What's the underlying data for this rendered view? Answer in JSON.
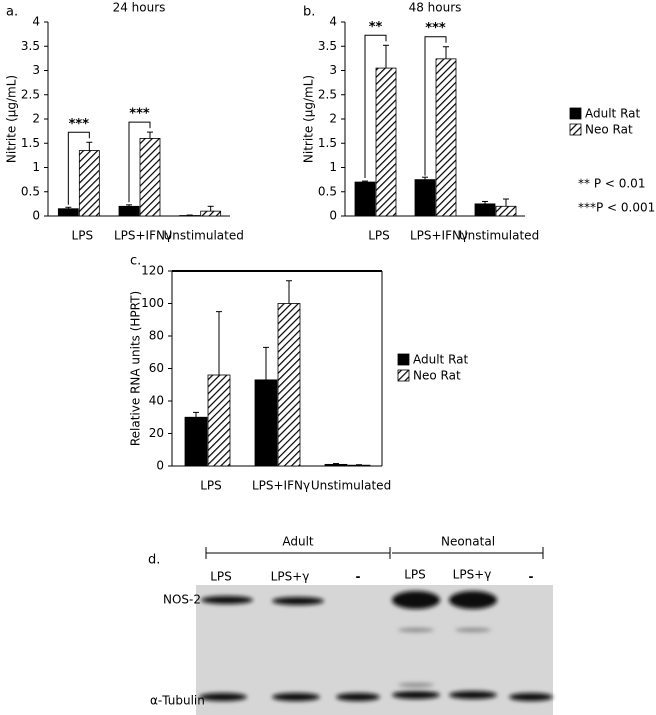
{
  "chart_data": [
    {
      "type": "bar",
      "panel_label": "a.",
      "title": "24 hours",
      "y_label": "Nitrite (µg/mL)",
      "categories": [
        "LPS",
        "LPS+IFNγ",
        "Unstimulated"
      ],
      "series": [
        {
          "color": "#000000",
          "fill": "solid",
          "values": [
            0.15,
            0.2,
            0.01
          ],
          "errors": [
            0.03,
            0.03,
            0.01
          ]
        },
        {
          "color": "#000000",
          "fill": "hatch",
          "values": [
            1.35,
            1.6,
            0.1
          ],
          "errors": [
            0.17,
            0.13,
            0.1
          ]
        }
      ],
      "significance": [
        "***",
        "***",
        null
      ],
      "ylim": [
        0,
        4
      ],
      "yticks": [
        0,
        0.5,
        1,
        1.5,
        2,
        2.5,
        3,
        3.5,
        4
      ]
    },
    {
      "type": "bar",
      "panel_label": "b.",
      "title": "48 hours",
      "y_label": "Nitrite (µg/mL)",
      "categories": [
        "LPS",
        "LPS+IFNγ",
        "Unstimulated"
      ],
      "series": [
        {
          "name": "Adult Rat",
          "color": "#000000",
          "fill": "solid",
          "values": [
            0.7,
            0.75,
            0.25
          ],
          "errors": [
            0.02,
            0.05,
            0.05
          ]
        },
        {
          "name": "Neo Rat",
          "color": "#000000",
          "fill": "hatch",
          "values": [
            3.05,
            3.24,
            0.2
          ],
          "errors": [
            0.47,
            0.25,
            0.15
          ]
        }
      ],
      "significance": [
        "**",
        "***",
        null
      ],
      "significance_key": [
        "** P < 0.01",
        "***P < 0.001"
      ],
      "ylim": [
        0,
        4
      ],
      "yticks": [
        0,
        0.5,
        1,
        1.5,
        2,
        2.5,
        3,
        3.5,
        4
      ]
    },
    {
      "type": "bar",
      "panel_label": "c.",
      "y_label": "Relative RNA units (HPRT)",
      "categories": [
        "LPS",
        "LPS+IFNγ",
        "Unstimulated"
      ],
      "series": [
        {
          "name": "Adult Rat",
          "color": "#000000",
          "fill": "solid",
          "values": [
            30,
            53,
            1
          ],
          "errors": [
            3,
            20,
            0.5
          ]
        },
        {
          "name": "Neo Rat",
          "color": "#000000",
          "fill": "hatch",
          "values": [
            56,
            100,
            0.5
          ],
          "errors": [
            39,
            14,
            0.3
          ]
        }
      ],
      "frame": true,
      "ylim": [
        0,
        120
      ],
      "yticks": [
        0,
        20,
        40,
        60,
        80,
        100,
        120
      ]
    }
  ],
  "blot": {
    "label": "d.",
    "groups": [
      "Adult",
      "Neonatal"
    ],
    "lanes": [
      "LPS",
      "LPS+γ",
      "-",
      "LPS",
      "LPS+γ",
      "-"
    ],
    "rows": [
      "NOS-2",
      "α-Tubulin"
    ]
  }
}
